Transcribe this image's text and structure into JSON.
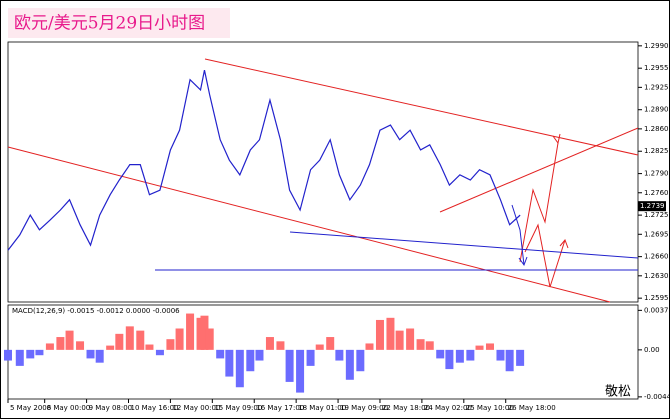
{
  "chart_data": [
    {
      "type": "line",
      "title": "欧元/美元5月29日小时图",
      "annotation": "敬松",
      "color": "#2222cc",
      "x": [
        0,
        9,
        17,
        24,
        32,
        40,
        47,
        55,
        63,
        70,
        78,
        85,
        93,
        101,
        108,
        116,
        124,
        131,
        139,
        147,
        150,
        154,
        162,
        169,
        177,
        185,
        192,
        200,
        208,
        215,
        223,
        231,
        238,
        246,
        253,
        261,
        269,
        276,
        284,
        292,
        299,
        307,
        315,
        322,
        330,
        337,
        345,
        353,
        360,
        368,
        376,
        383,
        391
      ],
      "values": [
        1.267,
        1.2694,
        1.2725,
        1.2702,
        1.2717,
        1.2733,
        1.2749,
        1.271,
        1.2678,
        1.2725,
        1.2757,
        1.278,
        1.2804,
        1.2804,
        1.2757,
        1.2764,
        1.2827,
        1.2858,
        1.2937,
        1.2921,
        1.2952,
        1.2913,
        1.2843,
        1.2811,
        1.2788,
        1.2827,
        1.2843,
        1.2905,
        1.2843,
        1.2764,
        1.2733,
        1.2796,
        1.2811,
        1.2843,
        1.2788,
        1.2749,
        1.2772,
        1.2804,
        1.2858,
        1.2866,
        1.2843,
        1.2858,
        1.2827,
        1.2835,
        1.2804,
        1.2772,
        1.2788,
        1.278,
        1.2796,
        1.2788,
        1.2749,
        1.271,
        1.2725
      ],
      "current_price": 1.2739,
      "xlim": [
        0,
        481
      ],
      "ylim": [
        1.2589,
        1.2996
      ],
      "yticks": [
        {
          "value": 1.299,
          "label": "1.2990"
        },
        1.2955,
        1.2925,
        {
          "value": 1.289,
          "label": "1.2890"
        },
        {
          "value": 1.286,
          "label": "1.2860"
        },
        1.2825,
        {
          "value": 1.279,
          "label": "1.2790"
        },
        {
          "value": 1.276,
          "label": "1.2760"
        },
        1.2725,
        1.2695,
        {
          "value": 1.266,
          "label": "1.2660"
        },
        {
          "value": 1.263,
          "label": "1.2630"
        },
        1.2595
      ]
    },
    {
      "type": "bar",
      "title": "MACD(12,26,9) -0.0015 -0.0012 0.0000 -0.0006",
      "positive_color": "#ff6f6f",
      "negative_color": "#6b6bff",
      "x": [
        0,
        9,
        17,
        24,
        32,
        40,
        47,
        55,
        63,
        70,
        78,
        85,
        93,
        101,
        108,
        116,
        124,
        131,
        139,
        147,
        150,
        154,
        162,
        169,
        177,
        185,
        192,
        200,
        208,
        215,
        223,
        231,
        238,
        246,
        253,
        261,
        269,
        276,
        284,
        292,
        299,
        307,
        315,
        322,
        330,
        337,
        345,
        353,
        360,
        368,
        376,
        383,
        391
      ],
      "values": [
        -0.001,
        -0.0015,
        -0.0008,
        -0.0005,
        0.0006,
        0.0012,
        0.0018,
        0.0008,
        -0.0008,
        -0.0012,
        0.0004,
        0.0015,
        0.0022,
        0.0018,
        0.0005,
        -0.0005,
        0.001,
        0.002,
        0.0034,
        0.003,
        0.0032,
        0.002,
        -0.0008,
        -0.0025,
        -0.0035,
        -0.002,
        -0.001,
        0.0012,
        0.0008,
        -0.003,
        -0.004,
        -0.0015,
        0.0005,
        0.0012,
        -0.001,
        -0.0028,
        -0.002,
        0.0006,
        0.0028,
        0.003,
        0.0018,
        0.002,
        0.001,
        0.0008,
        -0.0008,
        -0.0018,
        -0.0012,
        -0.001,
        0.0004,
        0.0006,
        -0.001,
        -0.002,
        -0.0015
      ],
      "xlim": [
        0,
        481
      ],
      "ylim": [
        -0.0046,
        0.0042
      ],
      "yticks": [
        0.0037,
        {
          "value": 0,
          "label": "0.00"
        },
        -0.0044
      ],
      "xticks": [
        {
          "value": 0,
          "label": "5 May 2006"
        },
        {
          "value": 28,
          "label": "8 May 00:00"
        },
        {
          "value": 60,
          "label": "9 May 08:00"
        },
        {
          "value": 92,
          "label": "10 May 16:00"
        },
        {
          "value": 124,
          "label": "12 May 00:00"
        },
        {
          "value": 156,
          "label": "15 May 09:00"
        },
        {
          "value": 188,
          "label": "16 May 17:00"
        },
        {
          "value": 220,
          "label": "18 May 01:00"
        },
        {
          "value": 252,
          "label": "19 May 09:00"
        },
        {
          "value": 284,
          "label": "22 May 18:00"
        },
        {
          "value": 316,
          "label": "24 May 02:00"
        },
        {
          "value": 348,
          "label": "25 May 10:00"
        },
        {
          "value": 380,
          "label": "26 May 18:00"
        }
      ]
    }
  ]
}
